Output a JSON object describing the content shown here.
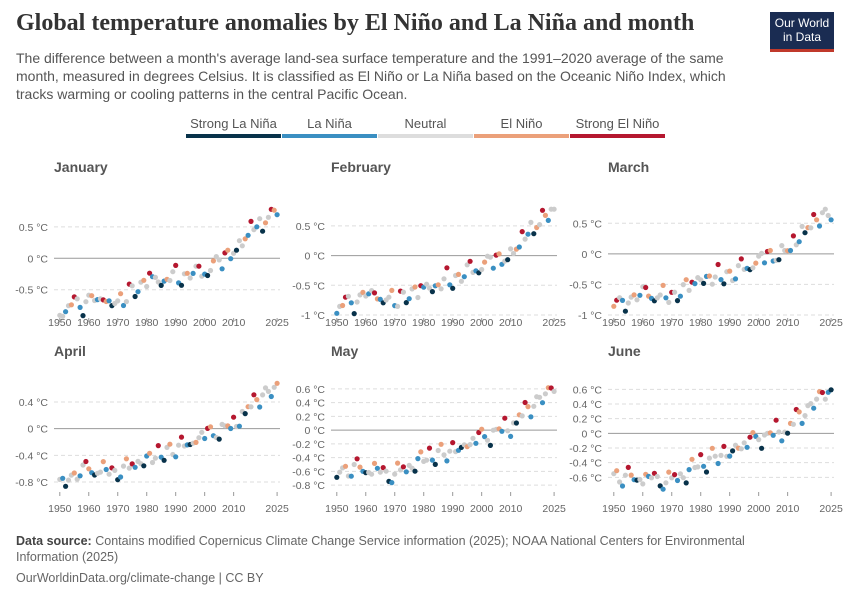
{
  "header": {
    "title": "Global temperature anomalies by El Niño and La Niña and month",
    "subtitle": "The difference between a month's average land-sea surface temperature and the 1991–2020 average of the same month, measured in degrees Celsius. It is classified as El Niño or La Niña based on the Oceanic Niño Index, which tracks warming or cooling patterns in the central Pacific Ocean.",
    "logo_line1": "Our World",
    "logo_line2": "in Data"
  },
  "legend": [
    {
      "label": "Strong La Niña",
      "color": "#08324a"
    },
    {
      "label": "La Niña",
      "color": "#3a8fc2"
    },
    {
      "label": "Neutral",
      "color": "#cccccc"
    },
    {
      "label": "El Niño",
      "color": "#eba07a"
    },
    {
      "label": "Strong El Niño",
      "color": "#b5172f"
    }
  ],
  "footer": {
    "source_label": "Data source:",
    "source_text": "Contains modified Copernicus Climate Change Service information (2025); NOAA National Centers for Environmental Information (2025)",
    "credit": "OurWorldinData.org/climate-change | CC BY"
  },
  "chart_data": [
    {
      "type": "scatter",
      "title": "January",
      "x_ticks": [
        1950,
        1960,
        1970,
        1980,
        1990,
        2000,
        2010,
        2025
      ],
      "y_ticks": [
        -0.5,
        0,
        0.5
      ],
      "y_tick_labels": [
        "-0.5 °C",
        "0 °C",
        "0.5 °C"
      ],
      "ylim": [
        -0.95,
        0.8
      ],
      "anchors": [
        [
          1950,
          -0.85
        ],
        [
          1960,
          -0.65
        ],
        [
          1970,
          -0.7
        ],
        [
          1980,
          -0.35
        ],
        [
          1990,
          -0.3
        ],
        [
          2000,
          -0.2
        ],
        [
          2010,
          0.1
        ],
        [
          2016,
          0.45
        ],
        [
          2025,
          0.75
        ]
      ],
      "amp": 0.16
    },
    {
      "type": "scatter",
      "title": "February",
      "x_ticks": [
        1950,
        1960,
        1970,
        1980,
        1990,
        2000,
        2010,
        2025
      ],
      "y_ticks": [
        -1,
        -0.5,
        0,
        0.5
      ],
      "y_tick_labels": [
        "-1 °C",
        "-0.5 °C",
        "0 °C",
        "0.5 °C"
      ],
      "ylim": [
        -1.05,
        0.8
      ],
      "anchors": [
        [
          1950,
          -0.9
        ],
        [
          1960,
          -0.65
        ],
        [
          1970,
          -0.75
        ],
        [
          1980,
          -0.55
        ],
        [
          1990,
          -0.4
        ],
        [
          2000,
          -0.15
        ],
        [
          2010,
          0.0
        ],
        [
          2016,
          0.4
        ],
        [
          2025,
          0.75
        ]
      ],
      "amp": 0.18
    },
    {
      "type": "scatter",
      "title": "March",
      "x_ticks": [
        1950,
        1960,
        1970,
        1980,
        1990,
        2000,
        2010,
        2025
      ],
      "y_ticks": [
        -1,
        -0.5,
        0,
        0.5
      ],
      "y_tick_labels": [
        "-1 °C",
        "-0.5 °C",
        "0 °C",
        "0.5 °C"
      ],
      "ylim": [
        -1.05,
        0.75
      ],
      "anchors": [
        [
          1950,
          -0.85
        ],
        [
          1960,
          -0.65
        ],
        [
          1970,
          -0.7
        ],
        [
          1980,
          -0.4
        ],
        [
          1990,
          -0.35
        ],
        [
          2000,
          -0.1
        ],
        [
          2010,
          0.05
        ],
        [
          2016,
          0.4
        ],
        [
          2025,
          0.7
        ]
      ],
      "amp": 0.17
    },
    {
      "type": "scatter",
      "title": "April",
      "x_ticks": [
        1950,
        1960,
        1970,
        1980,
        1990,
        2000,
        2010,
        2025
      ],
      "y_ticks": [
        -0.8,
        -0.4,
        0,
        0.4
      ],
      "y_tick_labels": [
        "-0.8 °C",
        "-0.4 °C",
        "0 °C",
        "0.4 °C"
      ],
      "ylim": [
        -0.95,
        0.7
      ],
      "anchors": [
        [
          1950,
          -0.8
        ],
        [
          1960,
          -0.6
        ],
        [
          1970,
          -0.65
        ],
        [
          1980,
          -0.45
        ],
        [
          1990,
          -0.3
        ],
        [
          2000,
          -0.1
        ],
        [
          2010,
          0.05
        ],
        [
          2016,
          0.35
        ],
        [
          2025,
          0.65
        ]
      ],
      "amp": 0.14
    },
    {
      "type": "scatter",
      "title": "May",
      "x_ticks": [
        1950,
        1960,
        1970,
        1980,
        1990,
        2000,
        2010,
        2025
      ],
      "y_ticks": [
        -0.8,
        -0.6,
        -0.4,
        -0.2,
        0,
        0.2,
        0.4,
        0.6
      ],
      "y_tick_labels": [
        "-0.8 °C",
        "-0.6 °C",
        "-0.4 °C",
        "-0.2 °C",
        "0 °C",
        "0.2 °C",
        "0.4 °C",
        "0.6 °C"
      ],
      "ylim": [
        -0.9,
        0.7
      ],
      "anchors": [
        [
          1950,
          -0.6
        ],
        [
          1960,
          -0.55
        ],
        [
          1970,
          -0.65
        ],
        [
          1980,
          -0.4
        ],
        [
          1990,
          -0.3
        ],
        [
          2000,
          -0.1
        ],
        [
          2010,
          0.05
        ],
        [
          2016,
          0.3
        ],
        [
          2025,
          0.62
        ]
      ],
      "amp": 0.14
    },
    {
      "type": "scatter",
      "title": "June",
      "x_ticks": [
        1950,
        1960,
        1970,
        1980,
        1990,
        2000,
        2010,
        2025
      ],
      "y_ticks": [
        -0.6,
        -0.4,
        -0.2,
        0,
        0.2,
        0.4,
        0.6
      ],
      "y_tick_labels": [
        "-0.6 °C",
        "-0.4 °C",
        "-0.2 °C",
        "0 °C",
        "0.2 °C",
        "0.4 °C",
        "0.6 °C"
      ],
      "ylim": [
        -0.8,
        0.7
      ],
      "anchors": [
        [
          1950,
          -0.6
        ],
        [
          1960,
          -0.6
        ],
        [
          1970,
          -0.65
        ],
        [
          1980,
          -0.4
        ],
        [
          1990,
          -0.25
        ],
        [
          2000,
          -0.05
        ],
        [
          2010,
          0.05
        ],
        [
          2016,
          0.3
        ],
        [
          2025,
          0.62
        ]
      ],
      "amp": 0.13
    }
  ],
  "x_range": [
    1948,
    2026
  ]
}
